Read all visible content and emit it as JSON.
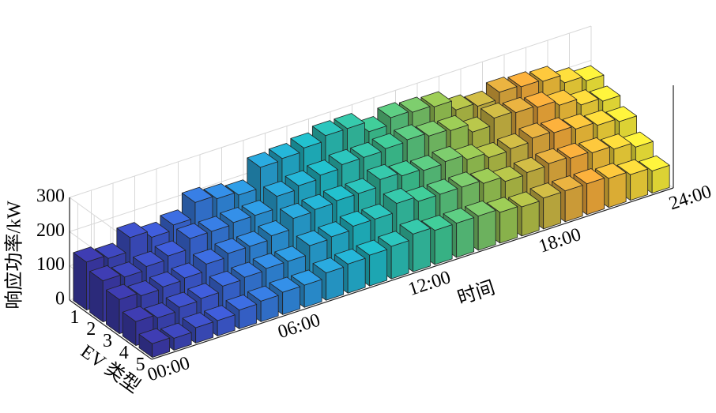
{
  "chart_data": {
    "type": "bar3",
    "xlabel": "时间",
    "ylabel": "EV 类型",
    "zlabel": "响应功率/kW",
    "x": [
      0,
      1,
      2,
      3,
      4,
      5,
      6,
      7,
      8,
      9,
      10,
      11,
      12,
      13,
      14,
      15,
      16,
      17,
      18,
      19,
      20,
      21,
      22,
      23
    ],
    "xlim": [
      0,
      24
    ],
    "xticks": [
      {
        "value": 0,
        "label": "00:00"
      },
      {
        "value": 6,
        "label": "06:00"
      },
      {
        "value": 12,
        "label": "12:00"
      },
      {
        "value": 18,
        "label": "18:00"
      },
      {
        "value": 24,
        "label": "24:00"
      }
    ],
    "ylim": [
      0.5,
      5.5
    ],
    "yticks": [
      1,
      2,
      3,
      4,
      5
    ],
    "zlim": [
      0,
      300
    ],
    "zticks": [
      0,
      100,
      200,
      300
    ],
    "grid": true,
    "colormap": [
      "#3c3aaa",
      "#3d5dd6",
      "#2f92e0",
      "#1fb8c8",
      "#3fc590",
      "#a4c44a",
      "#f1a43a",
      "#f4e93a"
    ],
    "series": [
      {
        "values": [
          140,
          130,
          170,
          150,
          165,
          210,
          200,
          190,
          250,
          255,
          265,
          280,
          280,
          250,
          270,
          265,
          260,
          230,
          220,
          240,
          235,
          230,
          205,
          190
        ]
      },
      {
        "values": [
          120,
          110,
          120,
          130,
          160,
          160,
          165,
          165,
          200,
          210,
          220,
          230,
          230,
          235,
          240,
          230,
          225,
          200,
          220,
          215,
          210,
          195,
          175,
          165
        ]
      },
      {
        "values": [
          100,
          90,
          95,
          100,
          120,
          130,
          130,
          140,
          170,
          175,
          180,
          180,
          200,
          190,
          185,
          190,
          175,
          160,
          165,
          175,
          170,
          160,
          150,
          140
        ]
      },
      {
        "values": [
          70,
          60,
          70,
          75,
          90,
          95,
          100,
          100,
          125,
          130,
          140,
          140,
          165,
          150,
          150,
          150,
          140,
          125,
          130,
          135,
          130,
          125,
          115,
          100
        ]
      },
      {
        "values": [
          40,
          35,
          45,
          45,
          55,
          60,
          65,
          65,
          80,
          85,
          90,
          95,
          110,
          100,
          100,
          100,
          90,
          85,
          90,
          90,
          90,
          85,
          75,
          65
        ]
      }
    ]
  }
}
